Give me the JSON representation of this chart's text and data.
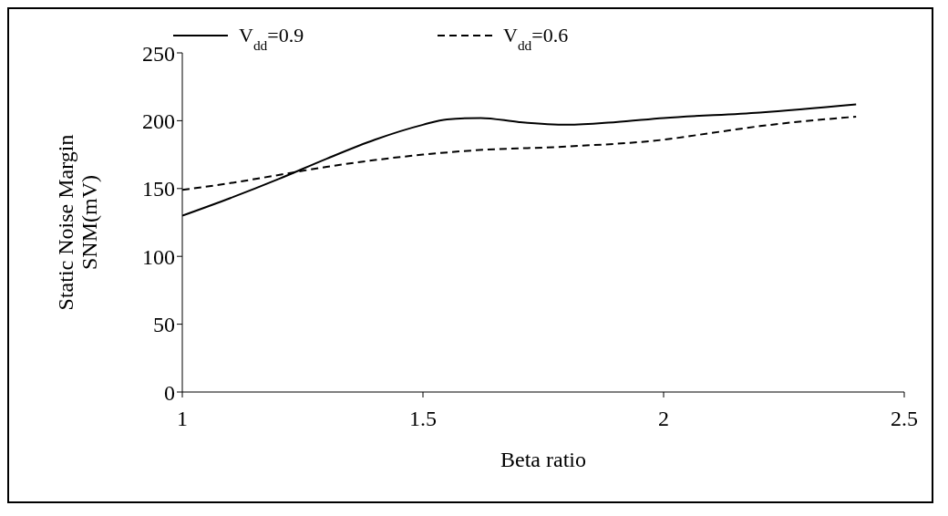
{
  "chart_data": {
    "type": "line",
    "xlabel": "Beta ratio",
    "ylabel": "Static Noise Margin\nSNM(mV)",
    "xlim": [
      1,
      2.5
    ],
    "xticks": [
      1,
      1.5,
      2,
      2.5
    ],
    "ylim": [
      0,
      250
    ],
    "yticks": [
      0,
      50,
      100,
      150,
      200,
      250
    ],
    "legend": "top",
    "marker": "none",
    "series": [
      {
        "name": "V$_{dd}$=0.9",
        "color": "#000000",
        "line_style": "solid",
        "x": [
          1,
          1.1,
          1.2,
          1.3,
          1.4,
          1.5,
          1.55,
          1.62,
          1.7,
          1.8,
          1.9,
          2.0,
          2.2,
          2.4
        ],
        "values": [
          130,
          143,
          157,
          172,
          186,
          197,
          201,
          202,
          199,
          197,
          199,
          202,
          206,
          212
        ]
      },
      {
        "name": "V$_{dd}$=0.6",
        "color": "#000000",
        "line_style": "dashed",
        "x": [
          1,
          1.1,
          1.2,
          1.3,
          1.4,
          1.5,
          1.6,
          1.8,
          2.0,
          2.1,
          2.2,
          2.4
        ],
        "values": [
          149,
          154,
          160,
          166,
          171,
          175,
          178,
          181,
          186,
          191,
          196,
          203
        ]
      }
    ]
  }
}
